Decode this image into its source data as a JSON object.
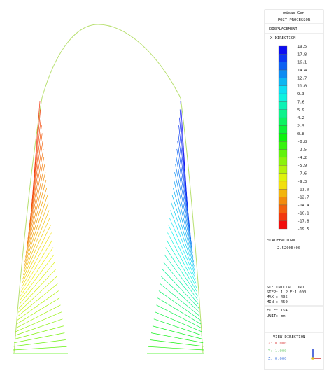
{
  "header": {
    "program": "midas Gen",
    "mode": "POST-PROCESSOR",
    "result": "DISPLACEMENT",
    "component": "X-DIRECTION"
  },
  "legend": {
    "labels": [
      "19.5",
      "17.8",
      "16.1",
      "14.4",
      "12.7",
      "11.0",
      "9.3",
      "7.6",
      "5.9",
      "4.2",
      "2.5",
      "0.8",
      "-0.8",
      "-2.5",
      "-4.2",
      "-5.9",
      "-7.6",
      "-9.3",
      "-11.0",
      "-12.7",
      "-14.4",
      "-16.1",
      "-17.8",
      "-19.5"
    ]
  },
  "scale": {
    "label": "SCALEFACTOR=",
    "value": "2.5200E+00"
  },
  "info": [
    "ST: INITIAL COND",
    "STEP: 1 P.F:1.000",
    "MAX : 405",
    "MIN : 450",
    "FILE: 1~4",
    "UNIT: mm"
  ],
  "view": {
    "title": "VIEW-DIRECTION",
    "x": "X: 0.000",
    "y": "Y:-1.000",
    "z": "Z: 0.000"
  }
}
